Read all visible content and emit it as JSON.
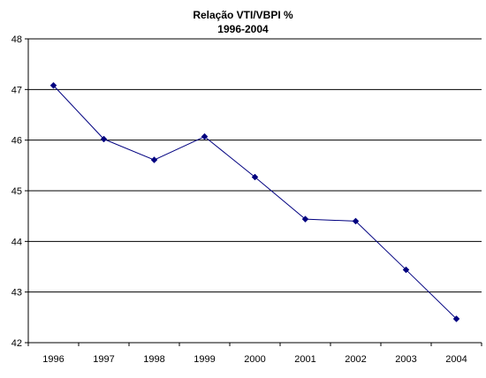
{
  "chart_data": {
    "type": "line",
    "title": "Relação VTI/VBPI %",
    "subtitle": "1996-2004",
    "xlabel": "",
    "ylabel": "",
    "categories": [
      "1996",
      "1997",
      "1998",
      "1999",
      "2000",
      "2001",
      "2002",
      "2003",
      "2004"
    ],
    "series": [
      {
        "values": [
          47.08,
          46.02,
          45.61,
          46.07,
          45.27,
          44.44,
          44.4,
          43.44,
          42.47
        ],
        "color": "#000080",
        "marker": "diamond"
      }
    ],
    "ylim": [
      42,
      48
    ],
    "yticks": [
      42,
      43,
      44,
      45,
      46,
      47,
      48
    ],
    "grid": "horizontal",
    "legend": "none"
  }
}
